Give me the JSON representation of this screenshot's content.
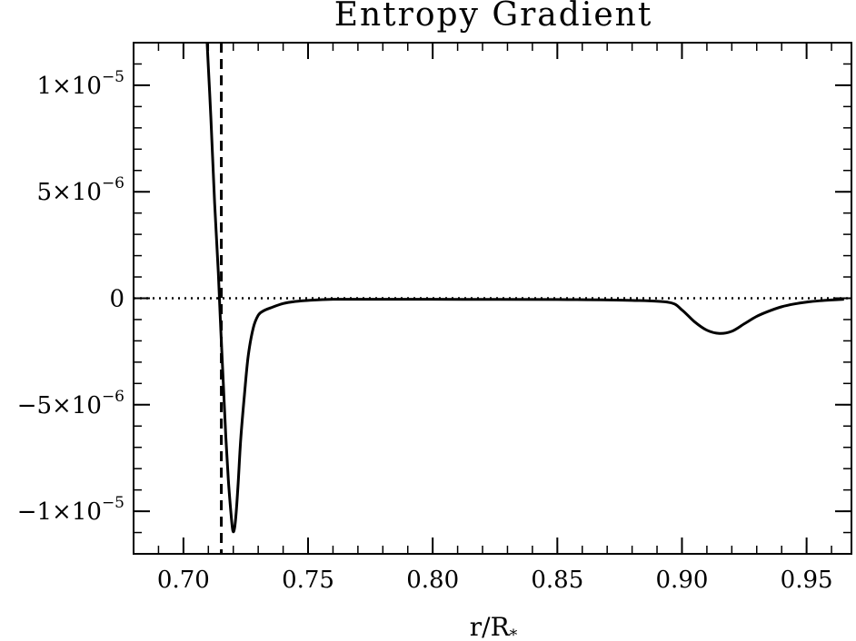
{
  "chart_data": {
    "type": "line",
    "title": "Entropy Gradient",
    "xlabel": "r/R",
    "xlabel_sub": "*",
    "ylabel": "",
    "xlim": [
      0.68,
      0.968
    ],
    "ylim": [
      -1.2e-05,
      1.2e-05
    ],
    "x_ticks": [
      {
        "value": 0.7,
        "label": "0.70"
      },
      {
        "value": 0.75,
        "label": "0.75"
      },
      {
        "value": 0.8,
        "label": "0.80"
      },
      {
        "value": 0.85,
        "label": "0.85"
      },
      {
        "value": 0.9,
        "label": "0.90"
      },
      {
        "value": 0.95,
        "label": "0.95"
      }
    ],
    "x_minor_step": 0.01,
    "y_ticks": [
      {
        "value": 1e-05,
        "mantissa": "1×10",
        "exponent": "−5"
      },
      {
        "value": 5e-06,
        "mantissa": "5×10",
        "exponent": "−6"
      },
      {
        "value": 0,
        "mantissa": "0",
        "exponent": ""
      },
      {
        "value": -5e-06,
        "mantissa": "−5×10",
        "exponent": "−6"
      },
      {
        "value": -1e-05,
        "mantissa": "−1×10",
        "exponent": "−5"
      }
    ],
    "y_minor_step": 1e-06,
    "grid": false,
    "reference_lines": [
      {
        "orientation": "horizontal",
        "value": 0,
        "style": "dotted"
      },
      {
        "orientation": "vertical",
        "value": 0.7152,
        "style": "dashed"
      }
    ],
    "series": [
      {
        "style": "solid",
        "color": "#000000",
        "x": [
          0.7095,
          0.711,
          0.7125,
          0.714,
          0.715,
          0.716,
          0.717,
          0.718,
          0.719,
          0.7198,
          0.7205,
          0.7212,
          0.722,
          0.723,
          0.7245,
          0.726,
          0.728,
          0.73,
          0.732,
          0.735,
          0.74,
          0.745,
          0.75,
          0.76,
          0.78,
          0.8,
          0.85,
          0.88,
          0.895,
          0.9,
          0.905,
          0.91,
          0.915,
          0.92,
          0.925,
          0.93,
          0.935,
          0.94,
          0.945,
          0.95,
          0.955,
          0.96,
          0.965
        ],
        "y": [
          1.2e-05,
          8.5e-06,
          4.5e-06,
          1.2e-06,
          -1.5e-06,
          -4e-06,
          -6.5e-06,
          -8.5e-06,
          -1e-05,
          -1.09e-05,
          -1.08e-05,
          -1e-05,
          -8.6e-06,
          -6.6e-06,
          -4.5e-06,
          -2.7e-06,
          -1.4e-06,
          -8e-07,
          -6e-07,
          -4.5e-07,
          -2.5e-07,
          -1.5e-07,
          -1e-07,
          -5e-08,
          -5e-08,
          -5e-08,
          -6e-08,
          -1e-07,
          -2e-07,
          -5.5e-07,
          -1.1e-06,
          -1.5e-06,
          -1.65e-06,
          -1.55e-06,
          -1.2e-06,
          -8.5e-07,
          -6e-07,
          -4e-07,
          -2.7e-07,
          -1.8e-07,
          -1.2e-07,
          -8e-08,
          -5e-08
        ]
      }
    ]
  }
}
